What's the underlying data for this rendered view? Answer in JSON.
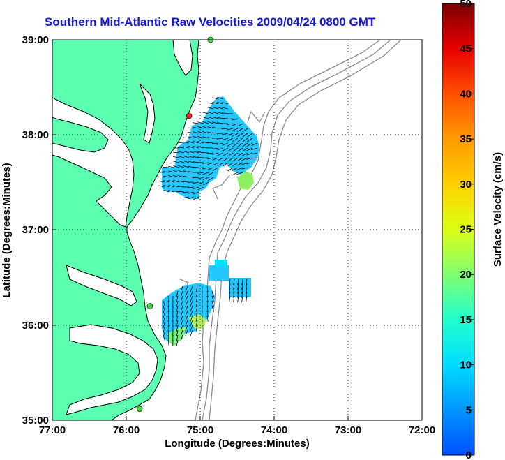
{
  "title": "Southern Mid-Atlantic Raw Velocities 2009/04/24 0800 GMT",
  "x_axis": {
    "label": "Longitude (Degrees:Minutes)",
    "ticks": [
      "77:00",
      "76:00",
      "75:00",
      "74:00",
      "73:00",
      "72:00"
    ]
  },
  "y_axis": {
    "label": "Latitude (Degrees:Minutes)",
    "ticks": [
      "39:00",
      "38:00",
      "37:00",
      "36:00",
      "35:00"
    ]
  },
  "colorbar": {
    "label": "Surface Velocity (cm/s)",
    "ticks": [
      "50",
      "45",
      "40",
      "35",
      "30",
      "25",
      "20",
      "15",
      "10",
      "5",
      "0"
    ],
    "colors": [
      "#0055ff",
      "#00aaff",
      "#00e5ff",
      "#20ffd0",
      "#7fff80",
      "#d0ff20",
      "#ffee00",
      "#ffb000",
      "#ff7000",
      "#ff2000",
      "#cc0000",
      "#7a0000"
    ]
  },
  "colors": {
    "land": "#5cffb0",
    "water": "#ffffff",
    "coastline": "#000000",
    "bathymetry": "#8c8c8c",
    "grid": "#000000",
    "title": "#1414e6"
  },
  "map_extent": {
    "lon_min": -77,
    "lon_max": -72,
    "lat_min": 35,
    "lat_max": 39
  },
  "stations": [
    {
      "lon": -75.82,
      "lat": 35.12,
      "color": "#44dd44"
    },
    {
      "lon": -75.68,
      "lat": 36.2,
      "color": "#44dd44"
    },
    {
      "lon": -75.15,
      "lat": 38.2,
      "color": "#ee2222"
    },
    {
      "lon": -74.86,
      "lat": 39.0,
      "color": "#44dd44"
    }
  ],
  "data_regions": [
    {
      "name": "northern-field",
      "color": "#22c8ff"
    },
    {
      "name": "southern-field",
      "color": "#22c8ff"
    }
  ]
}
